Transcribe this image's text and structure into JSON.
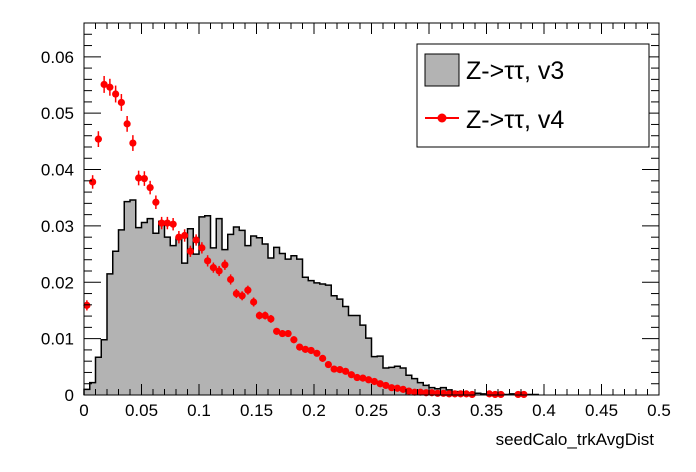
{
  "chart_data": {
    "type": "histogram",
    "xlabel": "seedCalo_trkAvgDist",
    "ylabel": "",
    "xlim": [
      0,
      0.5
    ],
    "ylim": [
      0,
      0.066
    ],
    "x_ticks": [
      0,
      0.05,
      0.1,
      0.15,
      0.2,
      0.25,
      0.3,
      0.35,
      0.4,
      0.45,
      0.5
    ],
    "x_tick_labels": [
      "0",
      "0.05",
      "0.1",
      "0.15",
      "0.2",
      "0.25",
      "0.3",
      "0.35",
      "0.4",
      "0.45",
      "0.5"
    ],
    "y_ticks": [
      0,
      0.01,
      0.02,
      0.03,
      0.04,
      0.05,
      0.06
    ],
    "y_tick_labels": [
      "0",
      "0.01",
      "0.02",
      "0.03",
      "0.04",
      "0.05",
      "0.06"
    ],
    "bin_width": 0.005,
    "legend_position": "top-right",
    "series": [
      {
        "name": "Z->ττ, v3",
        "style": "filled-step",
        "color": "#b3b3b3",
        "edge_color": "#000000",
        "bin_low_edges": [
          0,
          0.005,
          0.01,
          0.015,
          0.02,
          0.025,
          0.03,
          0.035,
          0.04,
          0.045,
          0.05,
          0.055,
          0.06,
          0.065,
          0.07,
          0.075,
          0.08,
          0.085,
          0.09,
          0.095,
          0.1,
          0.105,
          0.11,
          0.115,
          0.12,
          0.125,
          0.13,
          0.135,
          0.14,
          0.145,
          0.15,
          0.155,
          0.16,
          0.165,
          0.17,
          0.175,
          0.18,
          0.185,
          0.19,
          0.195,
          0.2,
          0.205,
          0.21,
          0.215,
          0.22,
          0.225,
          0.23,
          0.235,
          0.24,
          0.245,
          0.25,
          0.255,
          0.26,
          0.265,
          0.27,
          0.275,
          0.28,
          0.285,
          0.29,
          0.295,
          0.3,
          0.305,
          0.31,
          0.315,
          0.32,
          0.325,
          0.33,
          0.335,
          0.34,
          0.345,
          0.35,
          0.355,
          0.36,
          0.365,
          0.37,
          0.375,
          0.38,
          0.385,
          0.39
        ],
        "values": [
          0.001,
          0.0022,
          0.0067,
          0.0098,
          0.0215,
          0.0255,
          0.0293,
          0.0343,
          0.0346,
          0.0297,
          0.0306,
          0.0313,
          0.0287,
          0.0308,
          0.028,
          0.0265,
          0.0278,
          0.0234,
          0.0295,
          0.025,
          0.0316,
          0.0318,
          0.0261,
          0.0313,
          0.0258,
          0.0285,
          0.0298,
          0.0292,
          0.0265,
          0.0282,
          0.0279,
          0.0268,
          0.0243,
          0.0262,
          0.0251,
          0.0241,
          0.0247,
          0.0241,
          0.0209,
          0.0203,
          0.0199,
          0.0197,
          0.0195,
          0.0176,
          0.017,
          0.0157,
          0.0141,
          0.0141,
          0.0124,
          0.0101,
          0.0068,
          0.0069,
          0.0048,
          0.0049,
          0.0051,
          0.0048,
          0.0035,
          0.0029,
          0.0022,
          0.0017,
          0.0013,
          0.0011,
          0.0013,
          0.0009,
          0.0006,
          0.0006,
          0.0004,
          0.0003,
          0.0003,
          0.0002,
          0.0002,
          0.0001,
          0.0002,
          0.0001,
          0.0002,
          0.0001,
          0.0001,
          0.0001,
          0.0001
        ]
      },
      {
        "name": "Z->ττ, v4",
        "style": "markers-errorbars",
        "color": "#ff0000",
        "x": [
          0.0025,
          0.0075,
          0.0125,
          0.0175,
          0.0225,
          0.0275,
          0.0325,
          0.0375,
          0.0425,
          0.0475,
          0.0525,
          0.0575,
          0.0625,
          0.0675,
          0.0725,
          0.0775,
          0.0825,
          0.0875,
          0.0925,
          0.0975,
          0.1025,
          0.1075,
          0.1125,
          0.1175,
          0.1225,
          0.1275,
          0.1325,
          0.1375,
          0.1425,
          0.1475,
          0.1525,
          0.1575,
          0.1625,
          0.1675,
          0.1725,
          0.1775,
          0.1825,
          0.1875,
          0.1925,
          0.1975,
          0.2025,
          0.2075,
          0.2125,
          0.2175,
          0.2225,
          0.2275,
          0.2325,
          0.2375,
          0.2425,
          0.2475,
          0.2525,
          0.2575,
          0.2625,
          0.2675,
          0.2725,
          0.2775,
          0.2825,
          0.2875,
          0.2925,
          0.2975,
          0.3025,
          0.3075,
          0.3125,
          0.3175,
          0.3225,
          0.3275,
          0.3325,
          0.3375,
          0.3525,
          0.3575,
          0.3625,
          0.3775,
          0.3825
        ],
        "y": [
          0.0159,
          0.0378,
          0.0454,
          0.0551,
          0.0546,
          0.0534,
          0.0519,
          0.0481,
          0.0447,
          0.0385,
          0.0384,
          0.0368,
          0.0342,
          0.0305,
          0.0305,
          0.0303,
          0.028,
          0.0283,
          0.0255,
          0.0275,
          0.0261,
          0.0238,
          0.0226,
          0.022,
          0.0231,
          0.0205,
          0.018,
          0.0176,
          0.0186,
          0.0165,
          0.0141,
          0.0141,
          0.0135,
          0.0113,
          0.0109,
          0.0109,
          0.0098,
          0.0085,
          0.0081,
          0.0079,
          0.0074,
          0.0065,
          0.0054,
          0.0046,
          0.0045,
          0.0042,
          0.0036,
          0.0031,
          0.003,
          0.0027,
          0.0024,
          0.002,
          0.0017,
          0.0013,
          0.0012,
          0.001,
          0.0007,
          0.0005,
          0.0005,
          0.0004,
          0.0004,
          0.0003,
          0.0003,
          0.0002,
          0.0002,
          0.0002,
          0.0002,
          0.0001,
          0.0002,
          0.0001,
          0.0001,
          0.0001,
          0.0001
        ],
        "yerr": [
          0.0009,
          0.0012,
          0.0014,
          0.0015,
          0.0015,
          0.0015,
          0.0015,
          0.0014,
          0.0014,
          0.0013,
          0.0013,
          0.0012,
          0.0012,
          0.0011,
          0.0011,
          0.0011,
          0.0011,
          0.0011,
          0.001,
          0.001,
          0.001,
          0.001,
          0.0009,
          0.0009,
          0.0009,
          0.0009,
          0.0008,
          0.0008,
          0.0008,
          0.0008,
          0.0007,
          0.0007,
          0.0007,
          0.0006,
          0.0006,
          0.0006,
          0.0006,
          0.0005,
          0.0005,
          0.0005,
          0.0005,
          0.0005,
          0.0004,
          0.0004,
          0.0004,
          0.0004,
          0.0003,
          0.0003,
          0.0003,
          0.0003,
          0.0003,
          0.0003,
          0.0002,
          0.0002,
          0.0002,
          0.0002,
          0.0002,
          0.0001,
          0.0001,
          0.0001,
          0.0001,
          0.0001,
          0.0001,
          0.0001,
          0.0001,
          0.0001,
          0.0001,
          0.0001,
          0.0001,
          0.0001,
          0.0001,
          0.0001,
          0.0001
        ]
      }
    ]
  }
}
